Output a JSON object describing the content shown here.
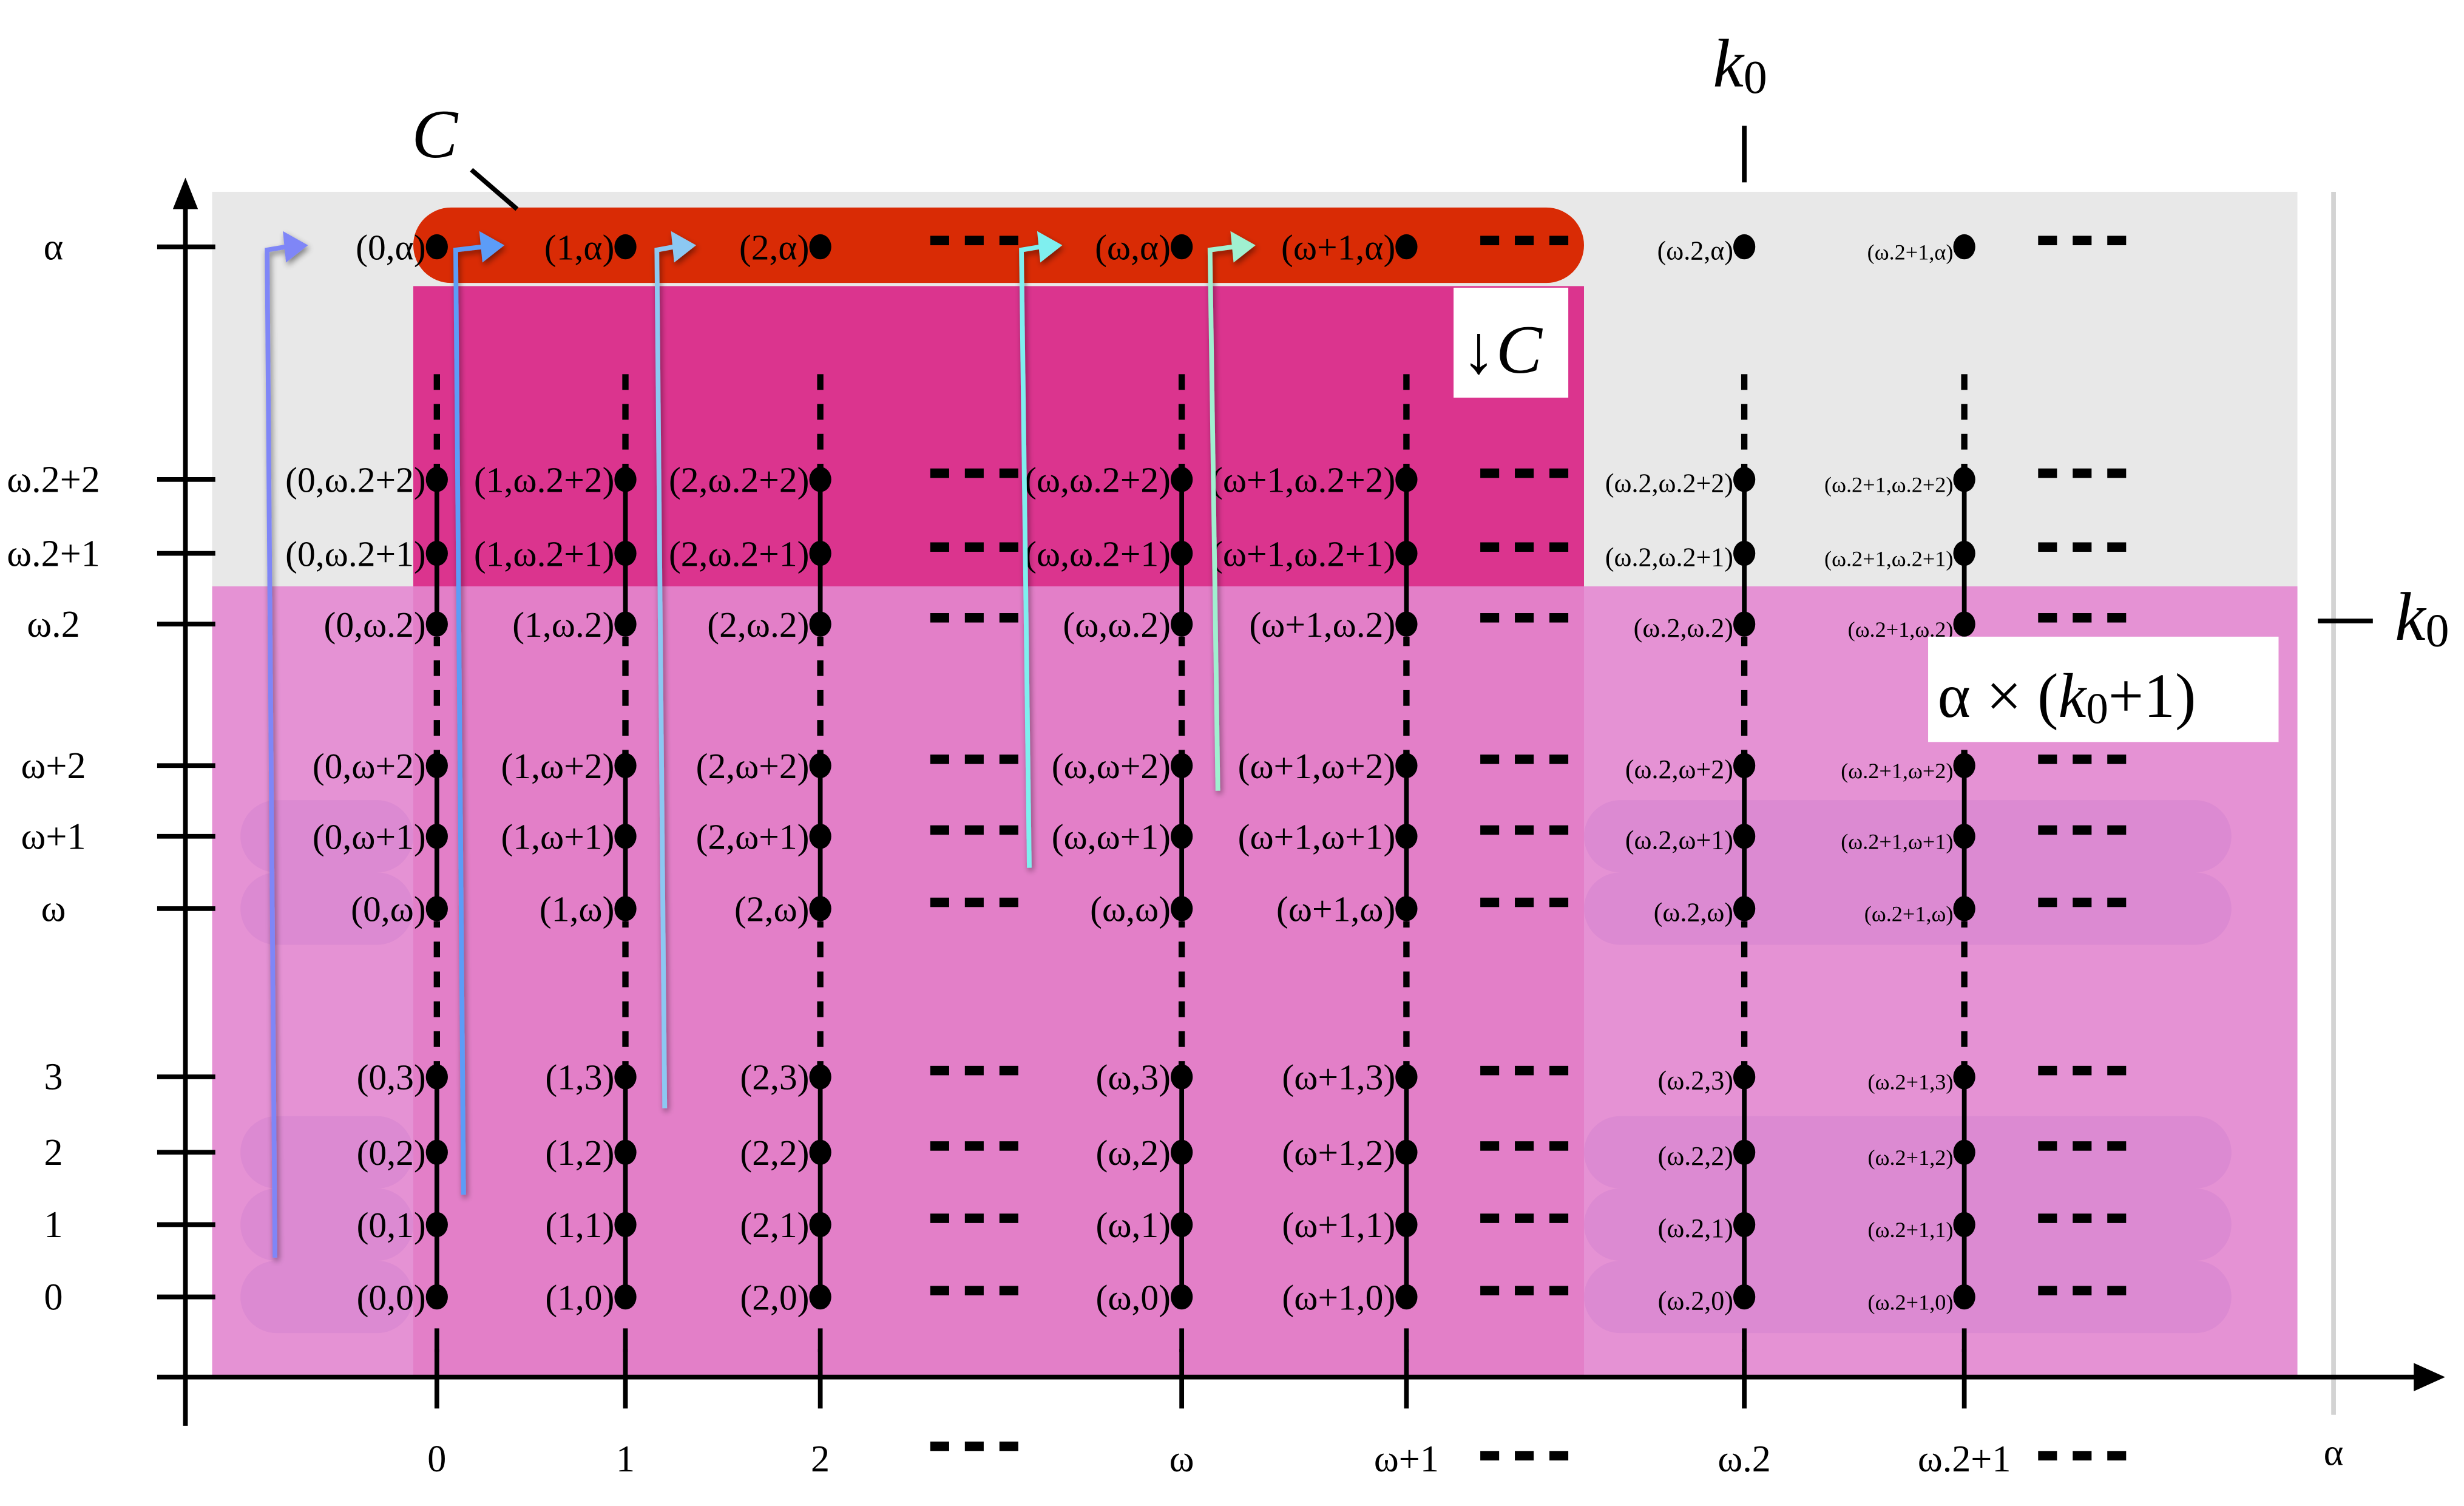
{
  "diagram": {
    "title_labels": {
      "C": "C",
      "down_C": "↓C",
      "k0_top": "k",
      "k0_top_sub": "0",
      "k0_right": "k",
      "k0_right_sub": "0",
      "product_prefix": "α × (",
      "product_k": "k",
      "product_sub": "0",
      "product_suffix": "+1)",
      "alpha_axis_end": "α"
    },
    "colors": {
      "grey_region": "#e8e8e8",
      "pink_region": "#e592d4",
      "pink_region_dark": "#e37fc8",
      "magenta_region": "#db348e",
      "red_band": "#d92b05",
      "row_pill": "#d684d0",
      "alpha_line": "#d3d3d3",
      "arrow_colors": [
        "#7f86f7",
        "#5b9cf7",
        "#8cc8f2",
        "#7fefef",
        "#a0f0d0"
      ]
    },
    "x_axis": {
      "ticks": [
        "0",
        "1",
        "2",
        "ω",
        "ω+1",
        "ω.2",
        "ω.2+1"
      ],
      "ellipsis_after": [
        "2",
        "ω+1",
        "ω.2+1"
      ],
      "end_label": "α"
    },
    "y_axis": {
      "ticks": [
        "0",
        "1",
        "2",
        "3",
        "ω",
        "ω+1",
        "ω+2",
        "ω.2",
        "ω.2+1",
        "ω.2+2",
        "α"
      ]
    },
    "columns": [
      {
        "key": "0",
        "label_size": "normal"
      },
      {
        "key": "1",
        "label_size": "normal"
      },
      {
        "key": "2",
        "label_size": "normal"
      },
      {
        "key": "ω",
        "label_size": "normal"
      },
      {
        "key": "ω+1",
        "label_size": "normal"
      },
      {
        "key": "ω.2",
        "label_size": "small"
      },
      {
        "key": "ω.2+1",
        "label_size": "tiny"
      }
    ],
    "rows": [
      "0",
      "1",
      "2",
      "3",
      "ω",
      "ω+1",
      "ω+2",
      "ω.2",
      "ω.2+1",
      "ω.2+2",
      "α"
    ],
    "points": [
      [
        "(0,0)",
        "(1,0)",
        "(2,0)",
        "(ω,0)",
        "(ω+1,0)",
        "(ω.2,0)",
        "(ω.2+1,0)"
      ],
      [
        "(0,1)",
        "(1,1)",
        "(2,1)",
        "(ω,1)",
        "(ω+1,1)",
        "(ω.2,1)",
        "(ω.2+1,1)"
      ],
      [
        "(0,2)",
        "(1,2)",
        "(2,2)",
        "(ω,2)",
        "(ω+1,2)",
        "(ω.2,2)",
        "(ω.2+1,2)"
      ],
      [
        "(0,3)",
        "(1,3)",
        "(2,3)",
        "(ω,3)",
        "(ω+1,3)",
        "(ω.2,3)",
        "(ω.2+1,3)"
      ],
      [
        "(0,ω)",
        "(1,ω)",
        "(2,ω)",
        "(ω,ω)",
        "(ω+1,ω)",
        "(ω.2,ω)",
        "(ω.2+1,ω)"
      ],
      [
        "(0,ω+1)",
        "(1,ω+1)",
        "(2,ω+1)",
        "(ω,ω+1)",
        "(ω+1,ω+1)",
        "(ω.2,ω+1)",
        "(ω.2+1,ω+1)"
      ],
      [
        "(0,ω+2)",
        "(1,ω+2)",
        "(2,ω+2)",
        "(ω,ω+2)",
        "(ω+1,ω+2)",
        "(ω.2,ω+2)",
        "(ω.2+1,ω+2)"
      ],
      [
        "(0,ω.2)",
        "(1,ω.2)",
        "(2,ω.2)",
        "(ω,ω.2)",
        "(ω+1,ω.2)",
        "(ω.2,ω.2)",
        "(ω.2+1,ω.2)"
      ],
      [
        "(0,ω.2+1)",
        "(1,ω.2+1)",
        "(2,ω.2+1)",
        "(ω,ω.2+1)",
        "(ω+1,ω.2+1)",
        "(ω.2,ω.2+1)",
        "(ω.2+1,ω.2+1)"
      ],
      [
        "(0,ω.2+2)",
        "(1,ω.2+2)",
        "(2,ω.2+2)",
        "(ω,ω.2+2)",
        "(ω+1,ω.2+2)",
        "(ω.2,ω.2+2)",
        "(ω.2+1,ω.2+2)"
      ],
      [
        "(0,α)",
        "(1,α)",
        "(2,α)",
        "(ω,α)",
        "(ω+1,α)",
        "(ω.2,α)",
        "(ω.2+1,α)"
      ]
    ],
    "highlighted_rows": [
      "0",
      "1",
      "2",
      "ω",
      "ω+1"
    ],
    "arrows": [
      {
        "from_row": "1",
        "to_point": "(0,α)"
      },
      {
        "from_row": "2",
        "to_point": "(1,α)"
      },
      {
        "from_row": "3",
        "to_point": "(2,α)"
      },
      {
        "from_row": "ω+1",
        "to_point": "(ω,α)"
      },
      {
        "from_row": "ω+2",
        "to_point": "(ω+1,α)"
      }
    ]
  }
}
